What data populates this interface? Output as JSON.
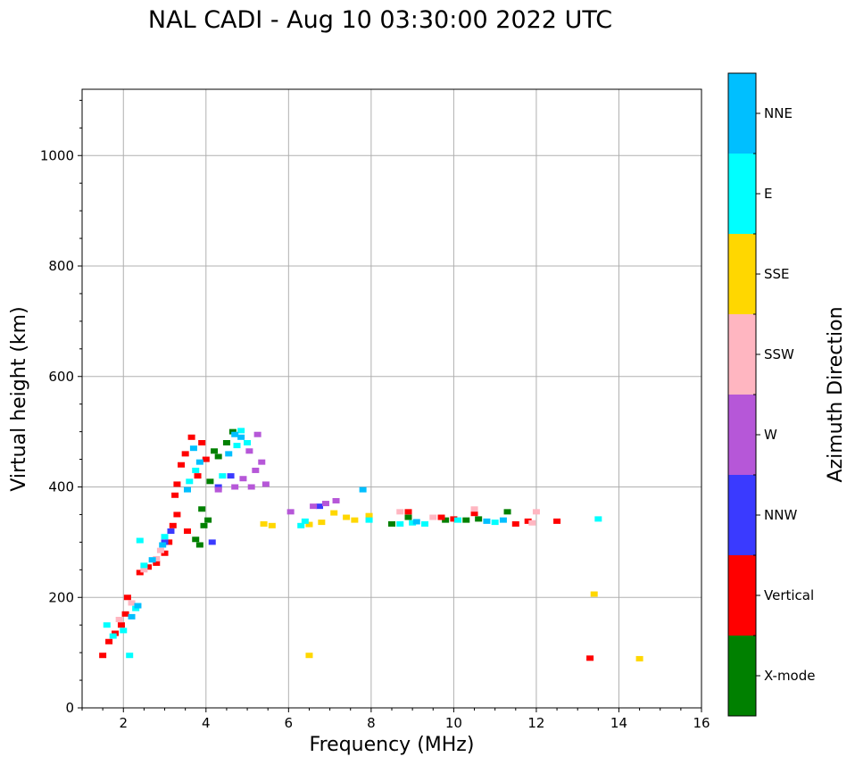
{
  "chart_data": {
    "type": "scatter",
    "title": "NAL CADI - Aug 10 03:30:00 2022 UTC",
    "xlabel": "Frequency (MHz)",
    "ylabel": "Virtual height (km)",
    "xlim": [
      1,
      16
    ],
    "ylim": [
      0,
      1120
    ],
    "xticks": [
      2,
      4,
      6,
      8,
      10,
      12,
      14,
      16
    ],
    "yticks": [
      0,
      200,
      400,
      600,
      800,
      1000
    ],
    "grid": true,
    "colorbar": {
      "label": "Azimuth Direction",
      "categories": [
        "X-mode",
        "Vertical",
        "NNW",
        "W",
        "SSW",
        "SSE",
        "E",
        "NNE"
      ],
      "colors": {
        "X-mode": "#008000",
        "Vertical": "#ff0000",
        "NNW": "#3a3aff",
        "W": "#b657d8",
        "SSW": "#ffb6c1",
        "SSE": "#ffd700",
        "E": "#00ffff",
        "NNE": "#00bfff"
      }
    },
    "series": [
      {
        "name": "X-mode",
        "points": [
          [
            3.75,
            305
          ],
          [
            3.95,
            330
          ],
          [
            3.9,
            360
          ],
          [
            4.1,
            410
          ],
          [
            4.2,
            465
          ],
          [
            4.5,
            480
          ],
          [
            4.65,
            500
          ],
          [
            4.05,
            340
          ],
          [
            3.85,
            295
          ],
          [
            4.3,
            455
          ],
          [
            8.5,
            333
          ],
          [
            8.9,
            345
          ],
          [
            9.8,
            340
          ],
          [
            10.3,
            340
          ],
          [
            10.6,
            342
          ],
          [
            11.3,
            355
          ]
        ]
      },
      {
        "name": "Vertical",
        "points": [
          [
            1.5,
            95
          ],
          [
            1.65,
            120
          ],
          [
            1.8,
            135
          ],
          [
            1.95,
            150
          ],
          [
            2.05,
            170
          ],
          [
            2.1,
            200
          ],
          [
            2.4,
            245
          ],
          [
            2.6,
            255
          ],
          [
            2.8,
            262
          ],
          [
            3.0,
            280
          ],
          [
            3.1,
            300
          ],
          [
            3.2,
            330
          ],
          [
            3.3,
            350
          ],
          [
            3.25,
            385
          ],
          [
            3.3,
            405
          ],
          [
            3.4,
            440
          ],
          [
            3.5,
            460
          ],
          [
            3.65,
            490
          ],
          [
            3.9,
            480
          ],
          [
            4.0,
            450
          ],
          [
            3.8,
            420
          ],
          [
            3.55,
            320
          ],
          [
            8.9,
            355
          ],
          [
            9.7,
            345
          ],
          [
            10.0,
            342
          ],
          [
            10.5,
            352
          ],
          [
            11.5,
            333
          ],
          [
            11.8,
            338
          ],
          [
            12.5,
            338
          ],
          [
            13.3,
            90
          ]
        ]
      },
      {
        "name": "NNW",
        "points": [
          [
            3.0,
            300
          ],
          [
            3.15,
            320
          ],
          [
            4.15,
            300
          ],
          [
            4.3,
            400
          ],
          [
            4.6,
            420
          ],
          [
            6.75,
            365
          ]
        ]
      },
      {
        "name": "W",
        "points": [
          [
            4.3,
            395
          ],
          [
            4.7,
            400
          ],
          [
            4.9,
            415
          ],
          [
            5.1,
            400
          ],
          [
            5.2,
            430
          ],
          [
            5.35,
            445
          ],
          [
            5.45,
            405
          ],
          [
            5.05,
            465
          ],
          [
            5.25,
            495
          ],
          [
            6.05,
            355
          ],
          [
            6.6,
            365
          ],
          [
            6.9,
            370
          ],
          [
            7.15,
            375
          ]
        ]
      },
      {
        "name": "SSW",
        "points": [
          [
            1.9,
            160
          ],
          [
            2.2,
            190
          ],
          [
            2.5,
            250
          ],
          [
            2.8,
            270
          ],
          [
            2.9,
            285
          ],
          [
            8.7,
            355
          ],
          [
            9.5,
            345
          ],
          [
            10.5,
            360
          ],
          [
            11.9,
            335
          ],
          [
            12.0,
            355
          ]
        ]
      },
      {
        "name": "SSE",
        "points": [
          [
            5.4,
            333
          ],
          [
            5.6,
            330
          ],
          [
            6.5,
            332
          ],
          [
            6.8,
            336
          ],
          [
            7.1,
            353
          ],
          [
            7.4,
            345
          ],
          [
            7.6,
            340
          ],
          [
            7.95,
            348
          ],
          [
            13.4,
            206
          ],
          [
            14.5,
            89
          ],
          [
            6.5,
            95
          ]
        ]
      },
      {
        "name": "E",
        "points": [
          [
            1.6,
            150
          ],
          [
            1.75,
            130
          ],
          [
            2.0,
            140
          ],
          [
            2.3,
            180
          ],
          [
            2.15,
            95
          ],
          [
            2.4,
            303
          ],
          [
            2.5,
            258
          ],
          [
            3.0,
            310
          ],
          [
            3.6,
            410
          ],
          [
            3.75,
            430
          ],
          [
            4.4,
            420
          ],
          [
            4.75,
            475
          ],
          [
            4.85,
            502
          ],
          [
            5.0,
            480
          ],
          [
            6.3,
            330
          ],
          [
            6.4,
            338
          ],
          [
            7.95,
            340
          ],
          [
            8.7,
            333
          ],
          [
            9.0,
            335
          ],
          [
            9.3,
            333
          ],
          [
            10.1,
            340
          ],
          [
            11.0,
            336
          ],
          [
            13.5,
            342
          ]
        ]
      },
      {
        "name": "NNE",
        "points": [
          [
            2.2,
            165
          ],
          [
            2.35,
            185
          ],
          [
            2.7,
            268
          ],
          [
            2.95,
            295
          ],
          [
            3.55,
            395
          ],
          [
            3.7,
            470
          ],
          [
            3.85,
            445
          ],
          [
            4.55,
            460
          ],
          [
            4.7,
            495
          ],
          [
            4.85,
            490
          ],
          [
            7.8,
            395
          ],
          [
            9.1,
            337
          ],
          [
            10.8,
            338
          ],
          [
            11.2,
            340
          ]
        ]
      }
    ]
  }
}
